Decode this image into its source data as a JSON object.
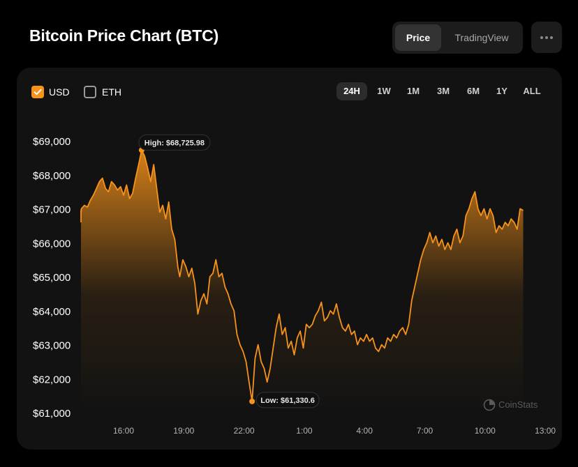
{
  "header": {
    "title": "Bitcoin Price Chart (BTC)",
    "view_tabs": [
      {
        "label": "Price",
        "active": true
      },
      {
        "label": "TradingView",
        "active": false
      }
    ],
    "more_icon": "ellipsis-icon"
  },
  "currency": {
    "usd": {
      "label": "USD",
      "checked": true
    },
    "eth": {
      "label": "ETH",
      "checked": false
    }
  },
  "ranges": [
    {
      "label": "24H",
      "active": true
    },
    {
      "label": "1W",
      "active": false
    },
    {
      "label": "1M",
      "active": false
    },
    {
      "label": "3M",
      "active": false
    },
    {
      "label": "6M",
      "active": false
    },
    {
      "label": "1Y",
      "active": false
    },
    {
      "label": "ALL",
      "active": false
    }
  ],
  "watermark": "CoinStats",
  "colors": {
    "accent": "#f7931a",
    "background": "#000000",
    "card": "#121212"
  },
  "chart_data": {
    "type": "area",
    "title": "",
    "xlabel": "",
    "ylabel": "",
    "x_ticks": [
      "16:00",
      "19:00",
      "22:00",
      "1:00",
      "4:00",
      "7:00",
      "10:00",
      "13:00"
    ],
    "y_ticks": [
      "$69,000",
      "$68,000",
      "$67,000",
      "$66,000",
      "$65,000",
      "$64,000",
      "$63,000",
      "$62,000",
      "$61,000"
    ],
    "ylim": [
      61000,
      69000
    ],
    "series": [
      {
        "values": [
          [
            13.0,
            66600
          ],
          [
            13.15,
            66600
          ],
          [
            13.3,
            66750
          ],
          [
            13.45,
            66700
          ],
          [
            13.6,
            66950
          ],
          [
            13.75,
            66850
          ],
          [
            13.9,
            67000
          ],
          [
            14.05,
            67100
          ],
          [
            14.2,
            67050
          ],
          [
            14.35,
            67250
          ],
          [
            14.5,
            67400
          ],
          [
            14.65,
            67600
          ],
          [
            14.8,
            67800
          ],
          [
            14.95,
            67900
          ],
          [
            15.1,
            67600
          ],
          [
            15.25,
            67500
          ],
          [
            15.4,
            67800
          ],
          [
            15.55,
            67700
          ],
          [
            15.7,
            67550
          ],
          [
            15.85,
            67650
          ],
          [
            16.0,
            67400
          ],
          [
            16.15,
            67700
          ],
          [
            16.3,
            67300
          ],
          [
            16.45,
            67450
          ],
          [
            16.6,
            67900
          ],
          [
            16.75,
            68300
          ],
          [
            16.9,
            68726
          ],
          [
            17.05,
            68550
          ],
          [
            17.2,
            68200
          ],
          [
            17.35,
            67800
          ],
          [
            17.5,
            68300
          ],
          [
            17.65,
            67600
          ],
          [
            17.8,
            66900
          ],
          [
            17.95,
            67100
          ],
          [
            18.1,
            66700
          ],
          [
            18.25,
            67200
          ],
          [
            18.4,
            66400
          ],
          [
            18.55,
            66100
          ],
          [
            18.7,
            65300
          ],
          [
            18.8,
            65000
          ],
          [
            18.95,
            65500
          ],
          [
            19.1,
            65300
          ],
          [
            19.25,
            65000
          ],
          [
            19.4,
            65250
          ],
          [
            19.55,
            64800
          ],
          [
            19.7,
            63900
          ],
          [
            19.85,
            64300
          ],
          [
            20.0,
            64500
          ],
          [
            20.15,
            64200
          ],
          [
            20.3,
            65000
          ],
          [
            20.45,
            65100
          ],
          [
            20.6,
            65500
          ],
          [
            20.75,
            65000
          ],
          [
            20.9,
            65100
          ],
          [
            21.05,
            64700
          ],
          [
            21.2,
            64500
          ],
          [
            21.35,
            64200
          ],
          [
            21.5,
            64000
          ],
          [
            21.65,
            63300
          ],
          [
            21.8,
            63000
          ],
          [
            21.95,
            62800
          ],
          [
            22.1,
            62500
          ],
          [
            22.25,
            61900
          ],
          [
            22.4,
            61331
          ],
          [
            22.55,
            62600
          ],
          [
            22.7,
            63000
          ],
          [
            22.85,
            62500
          ],
          [
            23.0,
            62300
          ],
          [
            23.15,
            61900
          ],
          [
            23.3,
            62300
          ],
          [
            23.45,
            62900
          ],
          [
            23.6,
            63500
          ],
          [
            23.75,
            63900
          ],
          [
            23.9,
            63300
          ],
          [
            24.05,
            63500
          ],
          [
            24.2,
            62900
          ],
          [
            24.35,
            63100
          ],
          [
            24.5,
            62700
          ],
          [
            24.65,
            63200
          ],
          [
            24.8,
            63400
          ],
          [
            24.95,
            62900
          ],
          [
            25.1,
            63600
          ],
          [
            25.25,
            63500
          ],
          [
            25.4,
            63600
          ],
          [
            25.55,
            63850
          ],
          [
            25.7,
            64000
          ],
          [
            25.85,
            64250
          ],
          [
            26.0,
            63700
          ],
          [
            26.15,
            63800
          ],
          [
            26.3,
            64000
          ],
          [
            26.45,
            63900
          ],
          [
            26.6,
            64200
          ],
          [
            26.75,
            63800
          ],
          [
            26.9,
            63500
          ],
          [
            27.05,
            63400
          ],
          [
            27.2,
            63600
          ],
          [
            27.35,
            63300
          ],
          [
            27.5,
            63400
          ],
          [
            27.65,
            63000
          ],
          [
            27.8,
            63200
          ],
          [
            27.95,
            63100
          ],
          [
            28.1,
            63300
          ],
          [
            28.25,
            63100
          ],
          [
            28.4,
            63200
          ],
          [
            28.55,
            62900
          ],
          [
            28.7,
            62800
          ],
          [
            28.85,
            63000
          ],
          [
            29.0,
            62900
          ],
          [
            29.15,
            63200
          ],
          [
            29.3,
            63100
          ],
          [
            29.45,
            63300
          ],
          [
            29.6,
            63200
          ],
          [
            29.75,
            63400
          ],
          [
            29.9,
            63500
          ],
          [
            30.05,
            63300
          ],
          [
            30.2,
            63600
          ],
          [
            30.35,
            64300
          ],
          [
            30.5,
            64700
          ],
          [
            30.65,
            65100
          ],
          [
            30.8,
            65500
          ],
          [
            30.95,
            65800
          ],
          [
            31.1,
            66000
          ],
          [
            31.25,
            66300
          ],
          [
            31.4,
            66000
          ],
          [
            31.55,
            66200
          ],
          [
            31.7,
            65900
          ],
          [
            31.85,
            66100
          ],
          [
            32.0,
            65800
          ],
          [
            32.15,
            66000
          ],
          [
            32.3,
            65800
          ],
          [
            32.45,
            66200
          ],
          [
            32.6,
            66400
          ],
          [
            32.75,
            66000
          ],
          [
            32.9,
            66200
          ],
          [
            33.05,
            66800
          ],
          [
            33.2,
            67000
          ],
          [
            33.35,
            67300
          ],
          [
            33.5,
            67500
          ],
          [
            33.65,
            67000
          ],
          [
            33.8,
            66800
          ],
          [
            33.95,
            67000
          ],
          [
            34.1,
            66700
          ],
          [
            34.25,
            67000
          ],
          [
            34.4,
            66800
          ],
          [
            34.55,
            66300
          ],
          [
            34.7,
            66500
          ],
          [
            34.85,
            66400
          ],
          [
            35.0,
            66600
          ],
          [
            35.15,
            66500
          ],
          [
            35.3,
            66700
          ],
          [
            35.45,
            66600
          ],
          [
            35.6,
            66400
          ],
          [
            35.75,
            67000
          ],
          [
            35.9,
            66950
          ]
        ]
      }
    ],
    "annotations": [
      {
        "label": "High: $68,725.98",
        "x": 16.9,
        "y": 68726
      },
      {
        "label": "Low: $61,330.6",
        "x": 22.4,
        "y": 61331
      }
    ]
  }
}
